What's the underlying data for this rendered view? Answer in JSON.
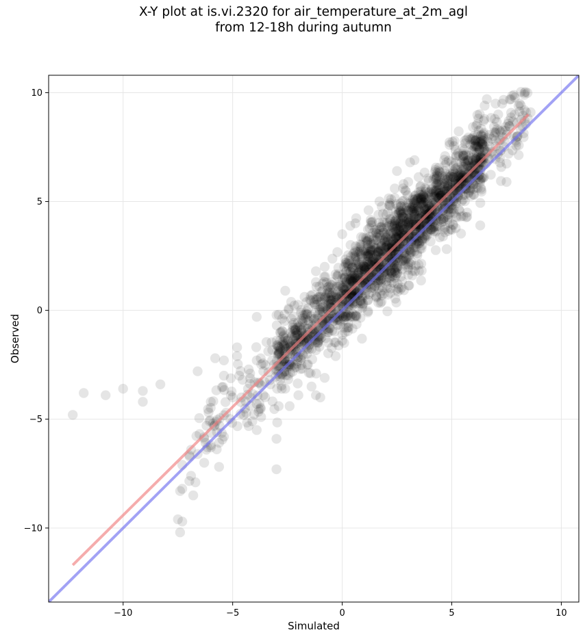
{
  "chart_data": {
    "type": "scatter",
    "title": [
      "X-Y plot at is.vi.2320 for air_temperature_at_2m_agl",
      "from 12-18h during autumn"
    ],
    "xlabel": "Simulated",
    "ylabel": "Observed",
    "xlim": [
      -13.4,
      10.8
    ],
    "ylim": [
      -13.4,
      10.8
    ],
    "xticks": [
      -10,
      -5,
      0,
      5,
      10
    ],
    "yticks": [
      -10,
      -5,
      0,
      5,
      10
    ],
    "grid": true,
    "colors": {
      "points": "#000000",
      "fit_line": "#f08080",
      "identity_line": "#7070f0"
    },
    "lines": [
      {
        "role": "fit",
        "x": [
          -12.3,
          8.5
        ],
        "y": [
          -11.7,
          9.0
        ]
      },
      {
        "role": "identity",
        "x": [
          -13.4,
          10.8
        ],
        "y": [
          -13.4,
          10.8
        ]
      }
    ],
    "outliers": [
      {
        "x": -12.3,
        "y": -4.8
      },
      {
        "x": -11.8,
        "y": -3.8
      },
      {
        "x": -10.8,
        "y": -3.9
      },
      {
        "x": -10.0,
        "y": -3.6
      },
      {
        "x": -9.1,
        "y": -3.7
      },
      {
        "x": -9.1,
        "y": -4.2
      },
      {
        "x": -8.3,
        "y": -3.4
      },
      {
        "x": -7.5,
        "y": -9.6
      },
      {
        "x": -7.3,
        "y": -9.7
      },
      {
        "x": -7.4,
        "y": -10.2
      },
      {
        "x": -7.4,
        "y": -8.3
      },
      {
        "x": -7.3,
        "y": -8.2
      },
      {
        "x": -6.8,
        "y": -8.5
      },
      {
        "x": -6.9,
        "y": -7.6
      },
      {
        "x": -6.7,
        "y": -7.9
      },
      {
        "x": -7.3,
        "y": -7.1
      },
      {
        "x": -6.9,
        "y": -6.4
      },
      {
        "x": -6.6,
        "y": -6.6
      },
      {
        "x": -6.3,
        "y": -5.9
      },
      {
        "x": -6.2,
        "y": -6.4
      },
      {
        "x": -6.0,
        "y": -6.2
      },
      {
        "x": -6.3,
        "y": -7.0
      },
      {
        "x": -5.9,
        "y": -5.2
      },
      {
        "x": -5.6,
        "y": -5.3
      },
      {
        "x": -6.0,
        "y": -4.2
      },
      {
        "x": -5.4,
        "y": -5.8
      },
      {
        "x": -5.3,
        "y": -4.7
      },
      {
        "x": -5.0,
        "y": -4.0
      },
      {
        "x": -5.4,
        "y": -3.0
      },
      {
        "x": -5.8,
        "y": -2.2
      },
      {
        "x": -6.6,
        "y": -2.8
      },
      {
        "x": -5.4,
        "y": -2.3
      },
      {
        "x": -4.7,
        "y": -3.0
      },
      {
        "x": -4.6,
        "y": -4.0
      },
      {
        "x": -4.5,
        "y": -4.8
      },
      {
        "x": -4.3,
        "y": -3.6
      },
      {
        "x": -4.1,
        "y": -5.1
      },
      {
        "x": -3.9,
        "y": -5.5
      },
      {
        "x": -3.7,
        "y": -4.9
      },
      {
        "x": -3.9,
        "y": -4.3
      },
      {
        "x": -3.6,
        "y": -3.9
      },
      {
        "x": -4.8,
        "y": -1.7
      },
      {
        "x": -4.8,
        "y": -2.1
      },
      {
        "x": -3.9,
        "y": -2.3
      },
      {
        "x": -3.0,
        "y": -5.9
      },
      {
        "x": -3.0,
        "y": -7.3
      },
      {
        "x": -3.9,
        "y": -0.3
      },
      {
        "x": -2.9,
        "y": -4.4
      },
      {
        "x": -2.4,
        "y": -4.4
      },
      {
        "x": -2.0,
        "y": -3.9
      },
      {
        "x": -1.4,
        "y": -3.5
      },
      {
        "x": -1.2,
        "y": -3.9
      },
      {
        "x": -1.0,
        "y": -4.0
      },
      {
        "x": -2.9,
        "y": -0.2
      },
      {
        "x": -2.6,
        "y": 0.9
      },
      {
        "x": -1.2,
        "y": 1.3
      },
      {
        "x": -1.1,
        "y": 0.6
      },
      {
        "x": -0.9,
        "y": 0.9
      },
      {
        "x": 0.9,
        "y": -1.3
      },
      {
        "x": 0.7,
        "y": 2.7
      },
      {
        "x": 0.0,
        "y": -1.4
      },
      {
        "x": 2.5,
        "y": 6.4
      },
      {
        "x": 3.1,
        "y": 6.8
      },
      {
        "x": 3.3,
        "y": 6.9
      },
      {
        "x": 7.5,
        "y": 5.9
      },
      {
        "x": 6.5,
        "y": 9.4
      },
      {
        "x": 6.6,
        "y": 9.7
      },
      {
        "x": 7.0,
        "y": 9.5
      },
      {
        "x": 7.3,
        "y": 9.5
      },
      {
        "x": 7.7,
        "y": 9.7
      },
      {
        "x": 8.1,
        "y": 9.5
      },
      {
        "x": 8.4,
        "y": 9.1
      },
      {
        "x": 8.6,
        "y": 9.1
      },
      {
        "x": 7.6,
        "y": 8.7
      },
      {
        "x": 8.0,
        "y": 8.0
      },
      {
        "x": 7.6,
        "y": 7.2
      },
      {
        "x": 5.6,
        "y": 7.8
      },
      {
        "x": 4.9,
        "y": 7.6
      },
      {
        "x": 6.3,
        "y": 3.9
      },
      {
        "x": 5.7,
        "y": 4.3
      },
      {
        "x": 5.0,
        "y": 3.7
      },
      {
        "x": 4.6,
        "y": 3.4
      },
      {
        "x": 3.5,
        "y": 1.8
      },
      {
        "x": 3.2,
        "y": 1.6
      },
      {
        "x": 2.5,
        "y": 1.7
      },
      {
        "x": 1.8,
        "y": 0.4
      },
      {
        "x": 2.2,
        "y": 0.8
      },
      {
        "x": 2.2,
        "y": 4.8
      },
      {
        "x": 1.7,
        "y": 5.0
      },
      {
        "x": 1.2,
        "y": 4.6
      },
      {
        "x": 0.6,
        "y": 4.0
      },
      {
        "x": 0.0,
        "y": 3.5
      },
      {
        "x": 2.4,
        "y": 5.6
      },
      {
        "x": 2.8,
        "y": 5.8
      },
      {
        "x": -0.8,
        "y": 2.0
      },
      {
        "x": -1.2,
        "y": 1.8
      },
      {
        "x": -0.3,
        "y": -2.1
      },
      {
        "x": -0.8,
        "y": -3.1
      },
      {
        "x": -1.6,
        "y": -2.5
      },
      {
        "x": -3.2,
        "y": -2.3
      },
      {
        "x": -2.6,
        "y": -3.6
      },
      {
        "x": -3.3,
        "y": -3.2
      },
      {
        "x": -4.0,
        "y": -3.3
      },
      {
        "x": -4.2,
        "y": -2.9
      },
      {
        "x": -3.6,
        "y": -2.8
      }
    ],
    "point_cloud": {
      "n": 2150,
      "note": "dense cloud of semi-transparent black points following y ≈ x + 0.6",
      "segments": [
        {
          "x_from": -7.0,
          "x_to": -3.0,
          "share": 0.04,
          "spread_y": 0.9
        },
        {
          "x_from": -3.0,
          "x_to": 0.0,
          "share": 0.2,
          "spread_y": 0.8
        },
        {
          "x_from": 0.0,
          "x_to": 3.5,
          "share": 0.42,
          "spread_y": 0.95
        },
        {
          "x_from": 3.5,
          "x_to": 6.5,
          "share": 0.3,
          "spread_y": 0.85
        },
        {
          "x_from": 6.5,
          "x_to": 8.5,
          "share": 0.04,
          "spread_y": 0.9
        }
      ],
      "offset": 0.6
    }
  }
}
